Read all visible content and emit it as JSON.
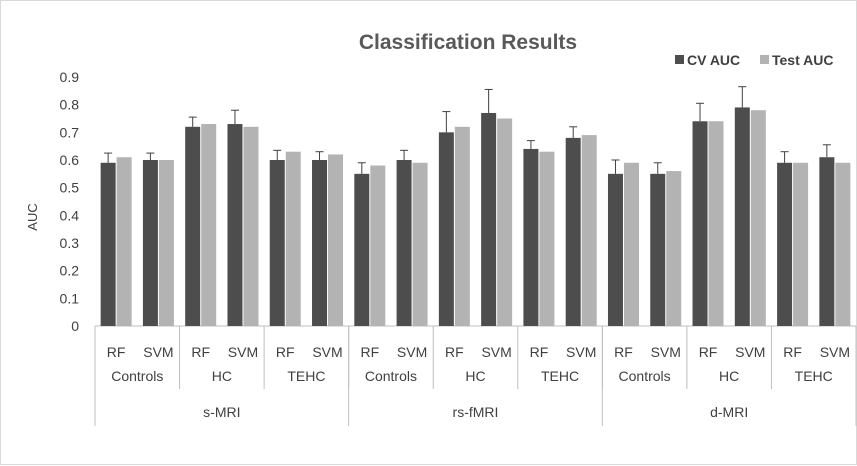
{
  "chart_data": {
    "type": "bar",
    "title": "Classification Results",
    "xlabel": "",
    "ylabel": "AUC",
    "ylim": [
      0,
      0.9
    ],
    "yticks": [
      "0",
      "0.1",
      "0.2",
      "0.3",
      "0.4",
      "0.5",
      "0.6",
      "0.7",
      "0.8",
      "0.9"
    ],
    "grid": false,
    "legend_position": "top-right",
    "colors": {
      "cv": "#4d4d4d",
      "test": "#b3b3b3",
      "axis": "#bfbfbf",
      "error_bar": "#404040"
    },
    "categories": [
      "RF",
      "SVM",
      "RF",
      "SVM",
      "RF",
      "SVM",
      "RF",
      "SVM",
      "RF",
      "SVM",
      "RF",
      "SVM",
      "RF",
      "SVM",
      "RF",
      "SVM",
      "RF",
      "SVM"
    ],
    "group_labels": [
      "Controls",
      "HC",
      "TEHC",
      "Controls",
      "HC",
      "TEHC",
      "Controls",
      "HC",
      "TEHC"
    ],
    "modality_labels": [
      "s-MRI",
      "rs-fMRI",
      "d-MRI"
    ],
    "series": [
      {
        "name": "CV AUC",
        "values": [
          0.59,
          0.6,
          0.72,
          0.73,
          0.6,
          0.6,
          0.55,
          0.6,
          0.7,
          0.77,
          0.64,
          0.68,
          0.55,
          0.55,
          0.74,
          0.79,
          0.59,
          0.61
        ],
        "error": [
          0.035,
          0.025,
          0.035,
          0.05,
          0.035,
          0.03,
          0.04,
          0.035,
          0.075,
          0.085,
          0.03,
          0.04,
          0.05,
          0.04,
          0.065,
          0.075,
          0.04,
          0.045
        ]
      },
      {
        "name": "Test AUC",
        "values": [
          0.61,
          0.6,
          0.73,
          0.72,
          0.63,
          0.62,
          0.58,
          0.59,
          0.72,
          0.75,
          0.63,
          0.69,
          0.59,
          0.56,
          0.74,
          0.78,
          0.59,
          0.59
        ]
      }
    ]
  }
}
